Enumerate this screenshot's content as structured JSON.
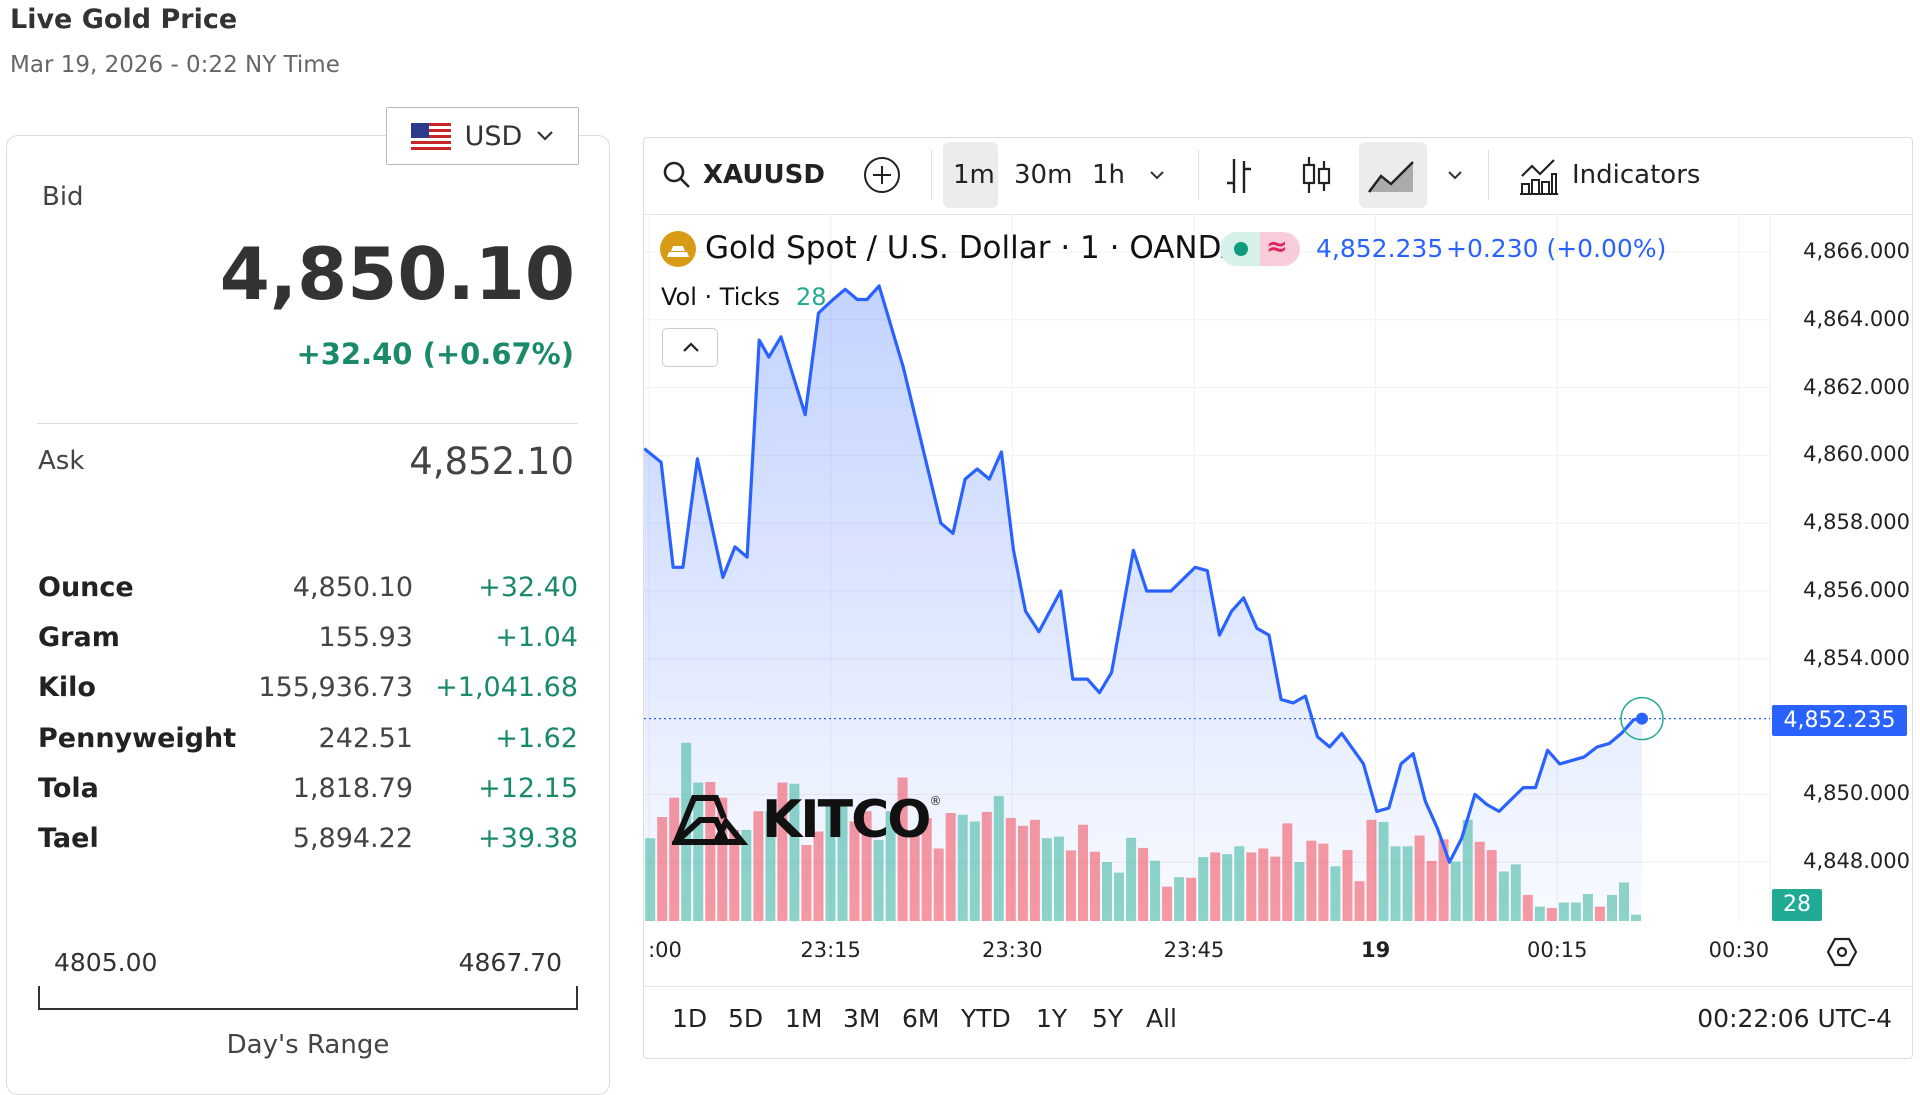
{
  "header": {
    "title": "Live Gold Price",
    "date": "Mar 19, 2026 - 0:22 NY Time"
  },
  "currency": {
    "selected": "USD",
    "icon": "us-flag-icon"
  },
  "quote": {
    "bid_label": "Bid",
    "bid": "4,850.10",
    "change": "+32.40 (+0.67%)",
    "ask_label": "Ask",
    "ask": "4,852.10"
  },
  "units": [
    {
      "name": "Ounce",
      "value": "4,850.10",
      "change": "+32.40"
    },
    {
      "name": "Gram",
      "value": "155.93",
      "change": "+1.04"
    },
    {
      "name": "Kilo",
      "value": "155,936.73",
      "change": "+1,041.68"
    },
    {
      "name": "Pennyweight",
      "value": "242.51",
      "change": "+1.62"
    },
    {
      "name": "Tola",
      "value": "1,818.79",
      "change": "+12.15"
    },
    {
      "name": "Tael",
      "value": "5,894.22",
      "change": "+39.38"
    }
  ],
  "day_range": {
    "low": "4805.00",
    "high": "4867.70",
    "label": "Day's Range"
  },
  "toolbar": {
    "symbol": "XAUUSD",
    "intervals": [
      "1m",
      "30m",
      "1h"
    ],
    "active_interval": "1m",
    "indicators": "Indicators"
  },
  "legend": {
    "name": "Gold Spot / U.S. Dollar · 1 · OANDA",
    "price": "4,852.235",
    "change": "+0.230 (+0.00%)",
    "vol_label": "Vol · Ticks",
    "vol_value": "28"
  },
  "watermark": "KITCO",
  "ranges": [
    "1D",
    "5D",
    "1M",
    "3M",
    "6M",
    "YTD",
    "1Y",
    "5Y",
    "All"
  ],
  "clock": "00:22:06 UTC-4",
  "colors": {
    "line": "#2962ff",
    "up": "#22ab94",
    "down": "#f23645",
    "green": "#1a8a6a"
  },
  "chart_data": {
    "type": "line",
    "x_unit": "minutes since 23:00",
    "price_ticks": [
      "4,866.000",
      "4,864.000",
      "4,862.000",
      "4,860.000",
      "4,858.000",
      "4,856.000",
      "4,854.000",
      "4,850.000",
      "4,848.000"
    ],
    "price_tick_values": [
      4866,
      4864,
      4862,
      4860,
      4858,
      4856,
      4854,
      4850,
      4848
    ],
    "ylim": [
      4847,
      4867.6
    ],
    "time_ticks": [
      {
        "label": ":00",
        "min": 0
      },
      {
        "label": "23:15",
        "min": 15
      },
      {
        "label": "23:30",
        "min": 30
      },
      {
        "label": "23:45",
        "min": 45
      },
      {
        "label": "19",
        "min": 60
      },
      {
        "label": "00:15",
        "min": 75
      },
      {
        "label": "00:30",
        "min": 90
      }
    ],
    "last_price": 4852.235,
    "last_price_label": "4,852.235",
    "last_volume_label": "28",
    "price": [
      [
        -0.4,
        4860.2
      ],
      [
        1,
        4859.8
      ],
      [
        2,
        4856.7
      ],
      [
        2.8,
        4856.7
      ],
      [
        4,
        4859.9
      ],
      [
        6.1,
        4856.4
      ],
      [
        7.1,
        4857.3
      ],
      [
        8.1,
        4857.0
      ],
      [
        9.1,
        4863.4
      ],
      [
        9.9,
        4862.9
      ],
      [
        10.9,
        4863.5
      ],
      [
        12.9,
        4861.2
      ],
      [
        14,
        4864.2
      ],
      [
        15.2,
        4864.6
      ],
      [
        16.2,
        4864.9
      ],
      [
        17.2,
        4864.6
      ],
      [
        18,
        4864.6
      ],
      [
        19,
        4865.0
      ],
      [
        21,
        4862.6
      ],
      [
        24.1,
        4858.0
      ],
      [
        25.1,
        4857.7
      ],
      [
        26.1,
        4859.3
      ],
      [
        27.1,
        4859.6
      ],
      [
        28.1,
        4859.3
      ],
      [
        29.1,
        4860.1
      ],
      [
        30.1,
        4857.2
      ],
      [
        31.1,
        4855.4
      ],
      [
        32.2,
        4854.8
      ],
      [
        34,
        4856.0
      ],
      [
        35,
        4853.4
      ],
      [
        36.2,
        4853.4
      ],
      [
        37.2,
        4853.0
      ],
      [
        38.2,
        4853.6
      ],
      [
        40,
        4857.2
      ],
      [
        41.1,
        4856.0
      ],
      [
        43.1,
        4856.0
      ],
      [
        45.1,
        4856.7
      ],
      [
        46.1,
        4856.6
      ],
      [
        47.1,
        4854.7
      ],
      [
        48.1,
        4855.4
      ],
      [
        49.1,
        4855.8
      ],
      [
        50.2,
        4854.9
      ],
      [
        51.2,
        4854.7
      ],
      [
        52.2,
        4852.8
      ],
      [
        53.2,
        4852.7
      ],
      [
        54.2,
        4852.9
      ],
      [
        55.2,
        4851.7
      ],
      [
        56.2,
        4851.4
      ],
      [
        57.2,
        4851.8
      ],
      [
        59,
        4850.9
      ],
      [
        60.1,
        4849.5
      ],
      [
        61.1,
        4849.6
      ],
      [
        62.1,
        4850.9
      ],
      [
        63.1,
        4851.2
      ],
      [
        64.1,
        4849.8
      ],
      [
        65.1,
        4849.0
      ],
      [
        66.1,
        4848.0
      ],
      [
        67.1,
        4848.7
      ],
      [
        68.2,
        4850.0
      ],
      [
        69.2,
        4849.7
      ],
      [
        70.2,
        4849.5
      ],
      [
        72.2,
        4850.2
      ],
      [
        73.2,
        4850.2
      ],
      [
        74.2,
        4851.3
      ],
      [
        75.2,
        4850.9
      ],
      [
        77.2,
        4851.1
      ],
      [
        78.3,
        4851.4
      ],
      [
        79.3,
        4851.5
      ],
      [
        80.3,
        4851.8
      ],
      [
        81.3,
        4852.2
      ],
      [
        82,
        4852.235
      ]
    ],
    "volume": [
      368,
      462,
      548,
      792,
      615,
      618,
      548,
      405,
      405,
      488,
      488,
      615,
      610,
      338,
      398,
      532,
      518,
      442,
      488,
      360,
      488,
      638,
      398,
      458,
      322,
      480,
      472,
      442,
      485,
      555,
      458,
      423,
      450,
      368,
      375,
      314,
      428,
      308,
      262,
      215,
      370,
      325,
      268,
      153,
      195,
      192,
      284,
      305,
      297,
      332,
      305,
      322,
      286,
      434,
      262,
      357,
      344,
      243,
      315,
      177,
      450,
      440,
      332,
      332,
      380,
      267,
      363,
      264,
      450,
      352,
      315,
      220,
      252,
      116,
      64,
      58,
      82,
      82,
      120,
      64,
      116,
      171,
      28
    ],
    "volume_dir": "grrggrrrgrgrgrrggrrggrrrrrggrgrrrggrrrgggrgrgrgrggrrrrgrrgrrrgggrrrggrrggrgrgggrggg"
  }
}
